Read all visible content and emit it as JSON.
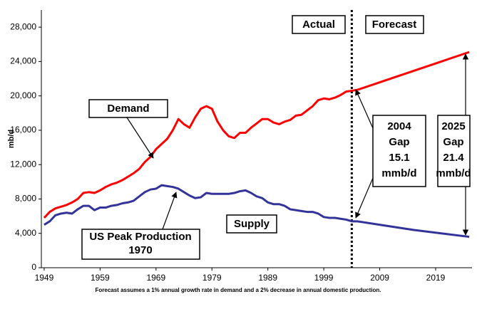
{
  "chart_data": {
    "type": "line",
    "y_label": "mb/d",
    "x": [
      1949,
      1950,
      1951,
      1952,
      1953,
      1954,
      1955,
      1956,
      1957,
      1958,
      1959,
      1960,
      1961,
      1962,
      1963,
      1964,
      1965,
      1966,
      1967,
      1968,
      1969,
      1970,
      1971,
      1972,
      1973,
      1974,
      1975,
      1976,
      1977,
      1978,
      1979,
      1980,
      1981,
      1982,
      1983,
      1984,
      1985,
      1986,
      1987,
      1988,
      1989,
      1990,
      1991,
      1992,
      1993,
      1994,
      1995,
      1996,
      1997,
      1998,
      1999,
      2000,
      2001,
      2002,
      2003,
      2004,
      2005,
      2010,
      2015,
      2020,
      2025
    ],
    "series": [
      {
        "name": "Demand",
        "color": "#ff0000",
        "values": [
          5800,
          6500,
          6900,
          7100,
          7300,
          7600,
          8000,
          8700,
          8800,
          8700,
          9000,
          9400,
          9700,
          9900,
          10200,
          10600,
          11000,
          11500,
          12300,
          12900,
          13800,
          14400,
          15000,
          16000,
          17300,
          16700,
          16300,
          17500,
          18500,
          18800,
          18500,
          17000,
          16000,
          15300,
          15100,
          15700,
          15700,
          16300,
          16800,
          17300,
          17300,
          16900,
          16700,
          17000,
          17200,
          17700,
          17800,
          18300,
          18800,
          19500,
          19700,
          19600,
          19800,
          20100,
          20500,
          20600,
          20700,
          21800,
          22900,
          24000,
          25100
        ]
      },
      {
        "name": "Supply",
        "color": "#333399",
        "values": [
          5000,
          5400,
          6100,
          6300,
          6400,
          6300,
          6800,
          7200,
          7200,
          6700,
          7000,
          7000,
          7200,
          7300,
          7500,
          7600,
          7800,
          8300,
          8800,
          9100,
          9200,
          9600,
          9500,
          9400,
          9200,
          8800,
          8400,
          8100,
          8200,
          8700,
          8600,
          8600,
          8600,
          8600,
          8700,
          8900,
          9000,
          8700,
          8300,
          8100,
          7600,
          7400,
          7400,
          7200,
          6800,
          6700,
          6600,
          6500,
          6500,
          6300,
          5900,
          5800,
          5800,
          5700,
          5600,
          5400,
          5400,
          4900,
          4400,
          4000,
          3600
        ]
      }
    ],
    "xlim": [
      1948.5,
      2025.5
    ],
    "xticks": [
      1949,
      1959,
      1969,
      1979,
      1989,
      1999,
      2009,
      2019
    ],
    "ylim": [
      0,
      30000
    ],
    "yticks": [
      0,
      {
        "value": 4000,
        "label": "4,000"
      },
      {
        "value": 8000,
        "label": "8,000"
      },
      {
        "value": 12000,
        "label": "12,000"
      },
      {
        "value": 16000,
        "label": "16,000"
      },
      {
        "value": 20000,
        "label": "20,000"
      },
      {
        "value": 24000,
        "label": "24,000"
      },
      {
        "value": 28000,
        "label": "28,000"
      }
    ],
    "divider_x": 2004,
    "annotations": {
      "actual": "Actual",
      "forecast": "Forecast",
      "peak": [
        "US Peak Production",
        "1970"
      ],
      "gap_2004": [
        "2004",
        "Gap",
        "15.1",
        "mmb/d"
      ],
      "gap_2025": [
        "2025",
        "Gap",
        "21.4",
        "mmb/d"
      ]
    },
    "footnote": "Forecast assumes a 1% annual growth rate in demand and a 2% decrease in annual domestic production."
  }
}
